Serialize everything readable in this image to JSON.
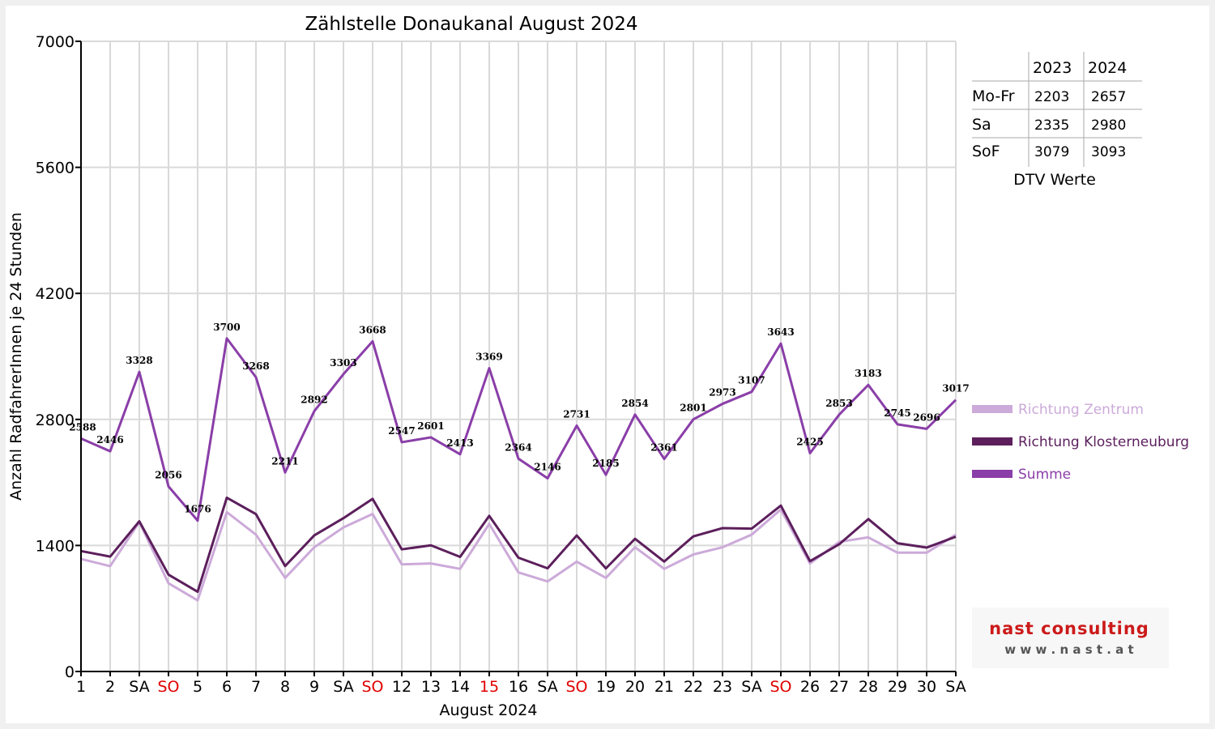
{
  "chart_data": {
    "type": "line",
    "title": "Zählstelle Donaukanal August 2024",
    "xlabel": "August 2024",
    "ylabel": "Anzahl RadfahrerInnen je 24 Stunden",
    "ylim": [
      0,
      7000
    ],
    "yticks": [
      0,
      1400,
      2800,
      4200,
      5600,
      7000
    ],
    "grid": true,
    "legend_position": "right",
    "categories": [
      "1",
      "2",
      "SA",
      "SO",
      "5",
      "6",
      "7",
      "8",
      "9",
      "SA",
      "SO",
      "12",
      "13",
      "14",
      "15",
      "16",
      "SA",
      "SO",
      "19",
      "20",
      "21",
      "22",
      "23",
      "SA",
      "SO",
      "26",
      "27",
      "28",
      "29",
      "30",
      "SA"
    ],
    "category_colors": [
      "#000000",
      "#000000",
      "#000000",
      "#e00000",
      "#000000",
      "#000000",
      "#000000",
      "#000000",
      "#000000",
      "#000000",
      "#e00000",
      "#000000",
      "#000000",
      "#000000",
      "#e00000",
      "#000000",
      "#000000",
      "#e00000",
      "#000000",
      "#000000",
      "#000000",
      "#000000",
      "#000000",
      "#000000",
      "#e00000",
      "#000000",
      "#000000",
      "#000000",
      "#000000",
      "#000000",
      "#000000"
    ],
    "series": [
      {
        "name": "Richtung Zentrum",
        "color": "#ccaad9",
        "values": [
          1250,
          1170,
          1660,
          980,
          790,
          1770,
          1520,
          1040,
          1380,
          1600,
          1750,
          1190,
          1200,
          1140,
          1640,
          1100,
          1000,
          1220,
          1040,
          1380,
          1140,
          1300,
          1380,
          1520,
          1800,
          1200,
          1440,
          1490,
          1320,
          1320,
          1520
        ]
      },
      {
        "name": "Richtung Klosterneuburg",
        "color": "#5c1f5c",
        "values": [
          1338,
          1276,
          1668,
          1076,
          886,
          1930,
          1748,
          1171,
          1512,
          1703,
          1918,
          1357,
          1401,
          1273,
          1729,
          1264,
          1146,
          1511,
          1145,
          1474,
          1221,
          1501,
          1593,
          1587,
          1843,
          1225,
          1413,
          1693,
          1425,
          1376,
          1497
        ]
      },
      {
        "name": "Summe",
        "color": "#8a3ea8",
        "values": [
          2588,
          2446,
          3328,
          2056,
          1676,
          3700,
          3268,
          2211,
          2892,
          3303,
          3668,
          2547,
          2601,
          2413,
          3369,
          2364,
          2146,
          2731,
          2185,
          2854,
          2361,
          2801,
          2973,
          3107,
          3643,
          2425,
          2853,
          3183,
          2745,
          2696,
          3017
        ]
      }
    ],
    "data_labels_series": "Summe"
  },
  "dtv_table": {
    "caption": "DTV Werte",
    "columns": [
      "2023",
      "2024"
    ],
    "rows": [
      {
        "label": "Mo-Fr",
        "v2023": "2203",
        "v2024": "2657"
      },
      {
        "label": "Sa",
        "v2023": "2335",
        "v2024": "2980"
      },
      {
        "label": "SoF",
        "v2023": "3079",
        "v2024": "3093"
      }
    ]
  },
  "logo": {
    "brand": "nast consulting",
    "url": "w w w . n a s t . a t"
  },
  "colors": {
    "grid": "#d9d9d9",
    "background": "#ffffff",
    "frame": "#f0f0f0",
    "weekend_red": "#e00000",
    "logo_red": "#cc1a1a",
    "logo_gray": "#555555"
  }
}
